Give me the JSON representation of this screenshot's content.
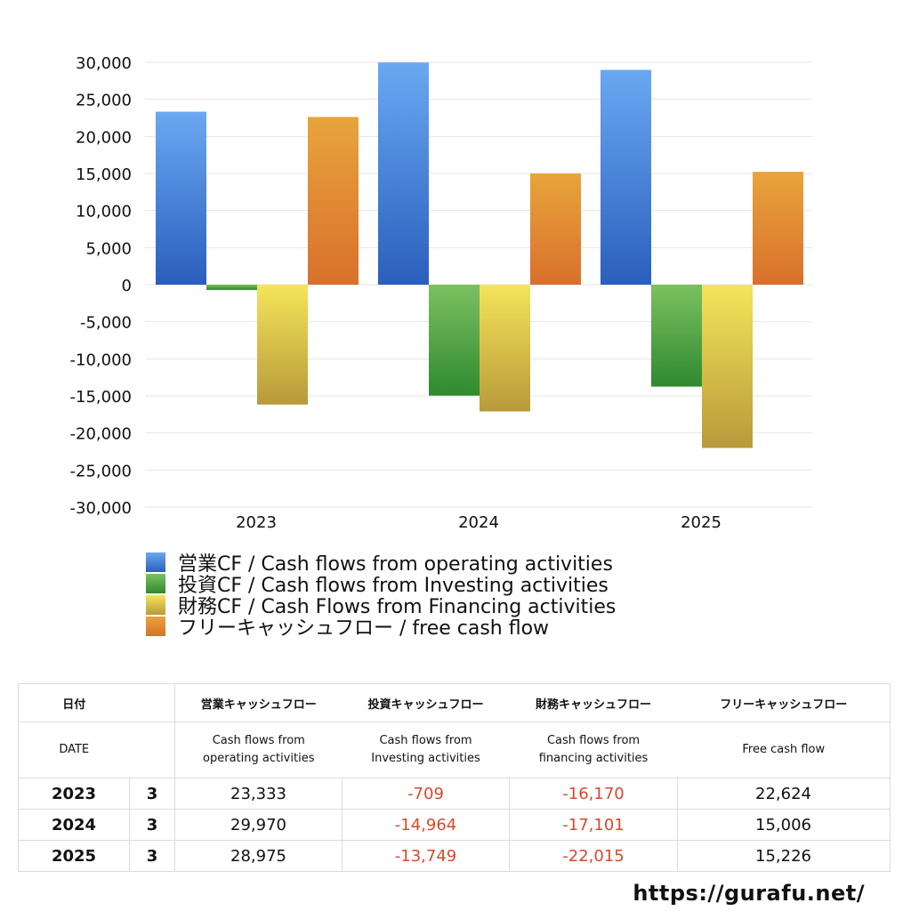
{
  "chart_data": {
    "type": "bar",
    "categories": [
      "2023",
      "2024",
      "2025"
    ],
    "series": [
      {
        "name": "営業CF / Cash flows from operating activities",
        "values": [
          23333,
          29970,
          28975
        ],
        "color_top": "#6aa8f2",
        "color_bottom": "#2a5fbd"
      },
      {
        "name": "投資CF / Cash flows from Investing activities",
        "values": [
          -709,
          -14964,
          -13749
        ],
        "color_top": "#7cc060",
        "color_bottom": "#2f8a2f"
      },
      {
        "name": "財務CF / Cash Flows from Financing activities",
        "values": [
          -16170,
          -17101,
          -22015
        ],
        "color_top": "#f4e45a",
        "color_bottom": "#b89a3a"
      },
      {
        "name": "フリーキャッシュフロー / free cash flow",
        "values": [
          22624,
          15006,
          15226
        ],
        "color_top": "#e8a43c",
        "color_bottom": "#d9702c"
      }
    ],
    "ylim": [
      -30000,
      30000
    ],
    "yticks": [
      "30,000",
      "25,000",
      "20,000",
      "15,000",
      "10,000",
      "5,000",
      "0",
      "-5,000",
      "-10,000",
      "-15,000",
      "-20,000",
      "-25,000",
      "-30,000"
    ],
    "grid": true,
    "legend_position": "bottom"
  },
  "table": {
    "header_ja": [
      "日付",
      "",
      "営業キャッシュフロー",
      "投資キャッシュフロー",
      "財務キャッシュフロー",
      "フリーキャッシュフロー"
    ],
    "header_en": [
      {
        "l1": "DATE",
        "l2": ""
      },
      {
        "l1": "",
        "l2": ""
      },
      {
        "l1": "Cash flows from",
        "l2": "operating activities"
      },
      {
        "l1": "Cash flows from",
        "l2": "Investing activities"
      },
      {
        "l1": "Cash flows from",
        "l2": "financing activities"
      },
      {
        "l1": "Free cash flow",
        "l2": ""
      }
    ],
    "rows": [
      {
        "year": "2023",
        "month": "3",
        "op": "23,333",
        "inv": "-709",
        "fin": "-16,170",
        "fcf": "22,624"
      },
      {
        "year": "2024",
        "month": "3",
        "op": "29,970",
        "inv": "-14,964",
        "fin": "-17,101",
        "fcf": "15,006"
      },
      {
        "year": "2025",
        "month": "3",
        "op": "28,975",
        "inv": "-13,749",
        "fin": "-22,015",
        "fcf": "15,226"
      }
    ]
  },
  "source": "https://gurafu.net/"
}
